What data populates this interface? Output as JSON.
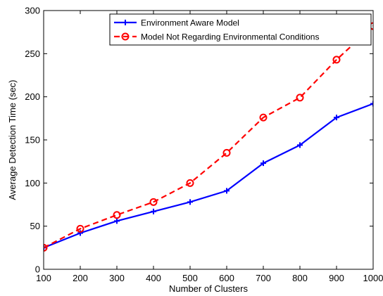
{
  "chart_data": {
    "type": "line",
    "title": "",
    "xlabel": "Number of Clusters",
    "ylabel": "Average Detection Time (sec)",
    "x": [
      100,
      200,
      300,
      400,
      500,
      600,
      700,
      800,
      900,
      1000
    ],
    "xlim": [
      100,
      1000
    ],
    "ylim": [
      0,
      300
    ],
    "x_ticks": [
      "100",
      "200",
      "300",
      "400",
      "500",
      "600",
      "700",
      "800",
      "900",
      "1000"
    ],
    "y_ticks": [
      "0",
      "50",
      "100",
      "150",
      "200",
      "250",
      "300"
    ],
    "grid": false,
    "legend_position": "top-right",
    "series": [
      {
        "name": "Environment Aware Model",
        "values": [
          25,
          42,
          56,
          67,
          78,
          91,
          123,
          144,
          176,
          192
        ],
        "color": "#0000ff",
        "line_style": "solid",
        "marker": "plus"
      },
      {
        "name": "Model Not Regarding Environmental Conditions",
        "values": [
          25,
          47,
          63,
          78,
          100,
          135,
          176,
          199,
          243,
          282
        ],
        "color": "#ff0000",
        "line_style": "dashed",
        "marker": "circle"
      }
    ]
  }
}
